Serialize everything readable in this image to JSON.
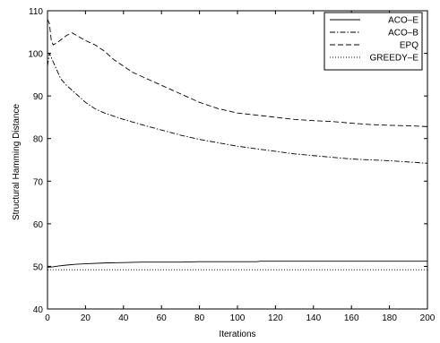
{
  "chart_data": {
    "type": "line",
    "title": "",
    "xlabel": "Iterations",
    "ylabel": "Structural Hamming Distance",
    "xlim": [
      0,
      200
    ],
    "ylim": [
      40,
      110
    ],
    "xticks": [
      0,
      20,
      40,
      60,
      80,
      100,
      120,
      140,
      160,
      180,
      200
    ],
    "yticks": [
      40,
      50,
      60,
      70,
      80,
      90,
      100,
      110
    ],
    "grid": false,
    "legend_position": "top-right",
    "series": [
      {
        "name": "ACO–E",
        "style": "solid",
        "color": "#000000",
        "x": [
          0,
          3,
          6,
          10,
          15,
          20,
          30,
          40,
          50,
          60,
          70,
          80,
          90,
          100,
          110,
          112,
          120,
          140,
          160,
          180,
          200
        ],
        "y": [
          49.8,
          49.9,
          50.1,
          50.3,
          50.5,
          50.6,
          50.8,
          50.9,
          51.0,
          51.0,
          51.0,
          51.1,
          51.1,
          51.1,
          51.1,
          51.2,
          51.2,
          51.2,
          51.2,
          51.2,
          51.2
        ]
      },
      {
        "name": "ACO–B",
        "style": "dashdot",
        "color": "#000000",
        "x": [
          0,
          1,
          2,
          3,
          5,
          7,
          10,
          15,
          20,
          25,
          30,
          40,
          50,
          60,
          70,
          80,
          90,
          100,
          110,
          120,
          130,
          140,
          150,
          160,
          170,
          180,
          190,
          200
        ],
        "y": [
          97,
          100,
          99,
          98,
          96,
          94,
          92.5,
          90.5,
          88.5,
          87,
          86,
          84.5,
          83.2,
          82,
          80.8,
          79.8,
          79,
          78.2,
          77.6,
          77,
          76.4,
          76,
          75.6,
          75.2,
          75,
          74.8,
          74.5,
          74.2
        ]
      },
      {
        "name": "EPQ",
        "style": "dashed",
        "color": "#000000",
        "x": [
          0,
          1,
          2,
          3,
          5,
          8,
          10,
          13,
          15,
          18,
          20,
          25,
          30,
          35,
          40,
          45,
          50,
          55,
          60,
          70,
          80,
          90,
          100,
          110,
          120,
          130,
          140,
          150,
          160,
          170,
          180,
          190,
          200
        ],
        "y": [
          108,
          107,
          103,
          102,
          102.5,
          103.5,
          104.2,
          104.8,
          104.3,
          103.5,
          103,
          102,
          100.5,
          98.5,
          97,
          95.5,
          94.5,
          93.5,
          92.5,
          90.5,
          88.5,
          87,
          86,
          85.5,
          85,
          84.5,
          84.2,
          84,
          83.6,
          83.3,
          83.1,
          83,
          82.8
        ]
      },
      {
        "name": "GREEDY–E",
        "style": "dotted",
        "color": "#000000",
        "x": [
          0,
          200
        ],
        "y": [
          49.2,
          49.2
        ]
      }
    ]
  }
}
